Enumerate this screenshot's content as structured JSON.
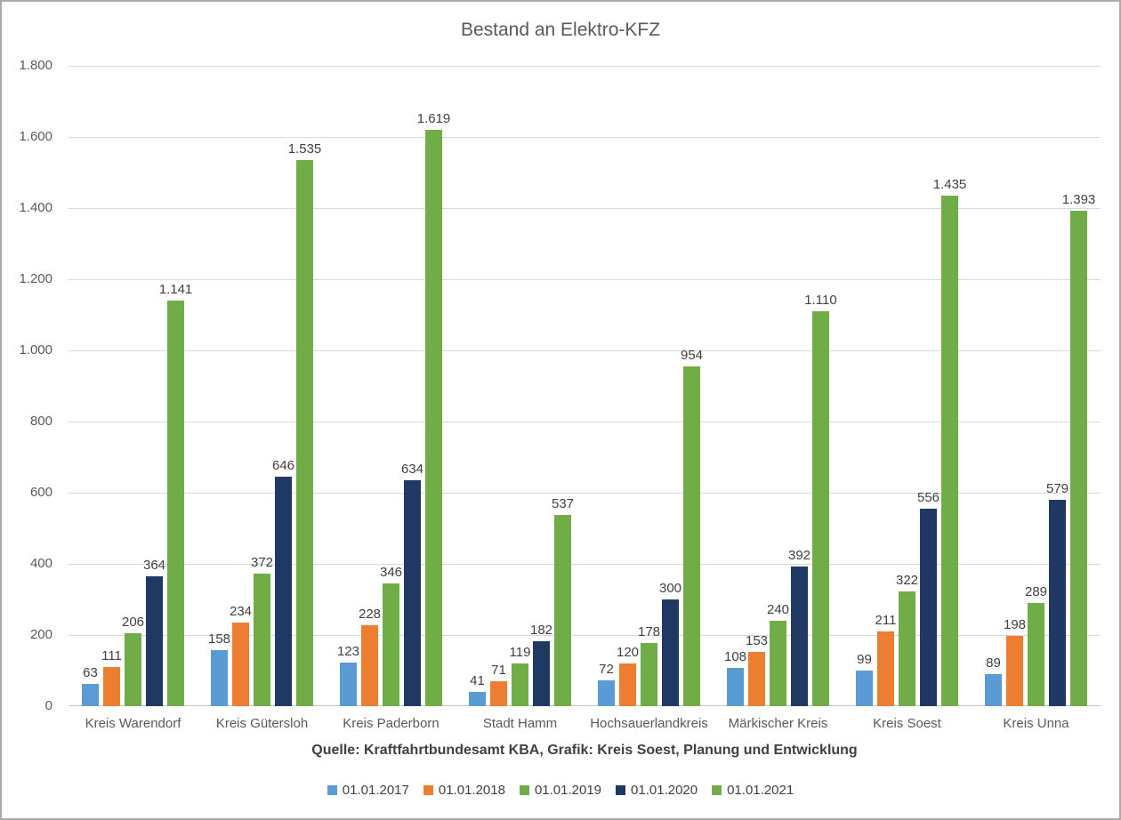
{
  "source_note": "Quelle: Kraftfahrtbundesamt KBA, Grafik: Kreis Soest, Planung und Entwicklung",
  "colors": {
    "title_text": "#595959",
    "axis_text": "#595959",
    "data_label_text": "#404040",
    "gridline": "#D9D9D9",
    "baseline": "#C6C6C6",
    "border": "#ABABAB",
    "series_blue": "#5B9BD5",
    "series_orange": "#ED7D31",
    "series_green": "#70AD47",
    "series_navy": "#1F3864"
  },
  "chart_data": {
    "type": "bar",
    "title": "Bestand an Elektro-KFZ",
    "categories": [
      "Kreis Warendorf",
      "Kreis Gütersloh",
      "Kreis Paderborn",
      "Stadt Hamm",
      "Hochsauerlandkreis",
      "Märkischer Kreis",
      "Kreis Soest",
      "Kreis Unna"
    ],
    "series": [
      {
        "name": "01.01.2017",
        "color": "#5B9BD5",
        "values": [
          63,
          158,
          123,
          41,
          72,
          108,
          99,
          89
        ],
        "labels": [
          "63",
          "158",
          "123",
          "41",
          "72",
          "108",
          "99",
          "89"
        ]
      },
      {
        "name": "01.01.2018",
        "color": "#ED7D31",
        "values": [
          111,
          234,
          228,
          71,
          120,
          153,
          211,
          198
        ],
        "labels": [
          "111",
          "234",
          "228",
          "71",
          "120",
          "153",
          "211",
          "198"
        ]
      },
      {
        "name": "01.01.2019",
        "color": "#70AD47",
        "values": [
          206,
          372,
          346,
          119,
          178,
          240,
          322,
          289
        ],
        "labels": [
          "206",
          "372",
          "346",
          "119",
          "178",
          "240",
          "322",
          "289"
        ]
      },
      {
        "name": "01.01.2020",
        "color": "#1F3864",
        "values": [
          364,
          646,
          634,
          182,
          300,
          392,
          556,
          579
        ],
        "labels": [
          "364",
          "646",
          "634",
          "182",
          "300",
          "392",
          "556",
          "579"
        ]
      },
      {
        "name": "01.01.2021",
        "color": "#70AD47",
        "values": [
          1141,
          1535,
          1619,
          537,
          954,
          1110,
          1435,
          1393
        ],
        "labels": [
          "1.141",
          "1.535",
          "1.619",
          "537",
          "954",
          "1.110",
          "1.435",
          "1.393"
        ]
      }
    ],
    "y_axis": {
      "min": 0,
      "max": 1800,
      "step": 200,
      "tick_labels": [
        "1.800",
        "1.600",
        "1.400",
        "1.200",
        "1.000",
        "800",
        "600",
        "400",
        "200",
        "0"
      ]
    },
    "grid": true,
    "data_labels": true,
    "legend_position": "bottom"
  }
}
